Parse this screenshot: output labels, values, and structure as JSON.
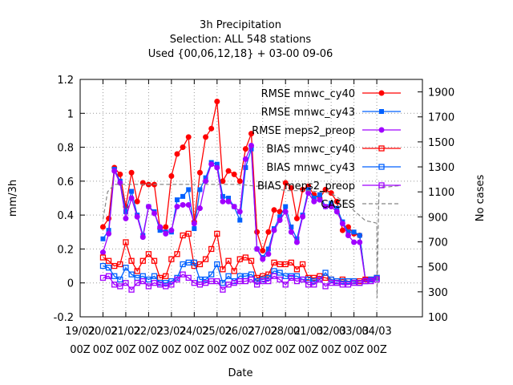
{
  "chart_data": {
    "type": "line",
    "title": [
      "3h Precipitation",
      "Selection: ALL    548 stations",
      "Used {00,06,12,18} + 03-00 09-06"
    ],
    "xlabel": "Date",
    "ylabel": "mm/3h",
    "y2label": "No cases",
    "xlim": [
      0,
      15
    ],
    "ylim": [
      -0.2,
      1.2
    ],
    "y2lim": [
      100,
      2000
    ],
    "x_tick_labels": [
      [
        "19/02",
        "00Z"
      ],
      [
        "20/02",
        "00Z"
      ],
      [
        "21/02",
        "00Z"
      ],
      [
        "22/02",
        "00Z"
      ],
      [
        "23/02",
        "00Z"
      ],
      [
        "24/02",
        "00Z"
      ],
      [
        "25/02",
        "00Z"
      ],
      [
        "26/02",
        "00Z"
      ],
      [
        "27/02",
        "00Z"
      ],
      [
        "28/02",
        "00Z"
      ],
      [
        "01/03",
        "00Z"
      ],
      [
        "02/03",
        "00Z"
      ],
      [
        "03/03",
        "00Z"
      ],
      [
        "04/03",
        "00Z"
      ]
    ],
    "y_ticks": [
      "-0.2",
      "0",
      "0.2",
      "0.4",
      "0.6",
      "0.8",
      "1",
      "1.2"
    ],
    "y2_ticks": [
      "100",
      "300",
      "500",
      "700",
      "900",
      "1100",
      "1300",
      "1500",
      "1700",
      "1900"
    ],
    "grid": true,
    "legend_position": "top-right",
    "series": [
      {
        "name": "RMSE mnwc_cy40",
        "color": "#ff0000",
        "marker": "filled-circle",
        "x": [
          1.0,
          1.25,
          1.5,
          1.75,
          2.0,
          2.25,
          2.5,
          2.75,
          3.0,
          3.25,
          3.5,
          3.75,
          4.0,
          4.25,
          4.5,
          4.75,
          5.0,
          5.25,
          5.5,
          5.75,
          6.0,
          6.25,
          6.5,
          6.75,
          7.0,
          7.25,
          7.5,
          7.75,
          8.0,
          8.25,
          8.5,
          8.75,
          9.0,
          9.25,
          9.5,
          9.75,
          10.0,
          10.25,
          10.5,
          10.75,
          11.0,
          11.25,
          11.5,
          11.75,
          12.0,
          12.25,
          12.5,
          12.75,
          13.0
        ],
        "y": [
          0.33,
          0.38,
          0.68,
          0.64,
          0.45,
          0.65,
          0.48,
          0.59,
          0.58,
          0.58,
          0.32,
          0.33,
          0.63,
          0.76,
          0.8,
          0.86,
          0.36,
          0.65,
          0.86,
          0.91,
          1.07,
          0.6,
          0.66,
          0.64,
          0.6,
          0.79,
          0.88,
          0.3,
          0.19,
          0.3,
          0.43,
          0.42,
          0.59,
          0.56,
          0.38,
          0.55,
          0.57,
          0.52,
          0.5,
          0.55,
          0.53,
          0.48,
          0.31,
          0.33,
          0.29,
          0.28,
          0.02,
          0.02,
          0.03
        ]
      },
      {
        "name": "RMSE mnwc_cy43",
        "color": "#0060ff",
        "marker": "filled-square",
        "x": [
          1.0,
          1.25,
          1.5,
          1.75,
          2.0,
          2.25,
          2.5,
          2.75,
          3.0,
          3.25,
          3.5,
          3.75,
          4.0,
          4.25,
          4.5,
          4.75,
          5.0,
          5.25,
          5.5,
          5.75,
          6.0,
          6.25,
          6.5,
          6.75,
          7.0,
          7.25,
          7.5,
          7.75,
          8.0,
          8.25,
          8.5,
          8.75,
          9.0,
          9.25,
          9.5,
          9.75,
          10.0,
          10.25,
          10.5,
          10.75,
          11.0,
          11.25,
          11.5,
          11.75,
          12.0,
          12.25,
          12.5,
          12.75,
          13.0
        ],
        "y": [
          0.26,
          0.31,
          0.67,
          0.6,
          0.42,
          0.54,
          0.4,
          0.28,
          0.45,
          0.42,
          0.31,
          0.3,
          0.3,
          0.49,
          0.51,
          0.55,
          0.32,
          0.55,
          0.62,
          0.71,
          0.7,
          0.51,
          0.5,
          0.45,
          0.37,
          0.68,
          0.79,
          0.2,
          0.15,
          0.2,
          0.32,
          0.39,
          0.45,
          0.33,
          0.26,
          0.4,
          0.55,
          0.5,
          0.52,
          0.45,
          0.47,
          0.44,
          0.36,
          0.3,
          0.3,
          0.28,
          0.02,
          0.02,
          0.03
        ]
      },
      {
        "name": "RMSE meps2_preop",
        "color": "#a000ff",
        "marker": "filled-circle",
        "x": [
          1.0,
          1.25,
          1.5,
          1.75,
          2.0,
          2.25,
          2.5,
          2.75,
          3.0,
          3.25,
          3.5,
          3.75,
          4.0,
          4.25,
          4.5,
          4.75,
          5.0,
          5.25,
          5.5,
          5.75,
          6.0,
          6.25,
          6.5,
          6.75,
          7.0,
          7.25,
          7.5,
          7.75,
          8.0,
          8.25,
          8.5,
          8.75,
          9.0,
          9.25,
          9.5,
          9.75,
          10.0,
          10.25,
          10.5,
          10.75,
          11.0,
          11.25,
          11.5,
          11.75,
          12.0,
          12.25,
          12.5,
          12.75,
          13.0
        ],
        "y": [
          0.18,
          0.29,
          0.66,
          0.59,
          0.38,
          0.5,
          0.39,
          0.27,
          0.45,
          0.41,
          0.33,
          0.29,
          0.31,
          0.45,
          0.46,
          0.46,
          0.35,
          0.44,
          0.6,
          0.7,
          0.68,
          0.48,
          0.48,
          0.45,
          0.42,
          0.73,
          0.81,
          0.2,
          0.14,
          0.17,
          0.31,
          0.37,
          0.42,
          0.3,
          0.24,
          0.39,
          0.53,
          0.48,
          0.49,
          0.45,
          0.45,
          0.42,
          0.35,
          0.28,
          0.24,
          0.24,
          0.02,
          0.02,
          0.03
        ]
      },
      {
        "name": "BIAS mnwc_cy40",
        "color": "#ff0000",
        "marker": "open-square",
        "x": [
          1.0,
          1.25,
          1.5,
          1.75,
          2.0,
          2.25,
          2.5,
          2.75,
          3.0,
          3.25,
          3.5,
          3.75,
          4.0,
          4.25,
          4.5,
          4.75,
          5.0,
          5.25,
          5.5,
          5.75,
          6.0,
          6.25,
          6.5,
          6.75,
          7.0,
          7.25,
          7.5,
          7.75,
          8.0,
          8.25,
          8.5,
          8.75,
          9.0,
          9.25,
          9.5,
          9.75,
          10.0,
          10.25,
          10.5,
          10.75,
          11.0,
          11.25,
          11.5,
          11.75,
          12.0,
          12.25,
          12.5,
          12.75,
          13.0
        ],
        "y": [
          0.15,
          0.13,
          0.1,
          0.11,
          0.24,
          0.13,
          0.07,
          0.13,
          0.17,
          0.13,
          0.03,
          0.04,
          0.14,
          0.17,
          0.28,
          0.29,
          0.1,
          0.11,
          0.14,
          0.2,
          0.29,
          0.08,
          0.13,
          0.07,
          0.14,
          0.15,
          0.13,
          0.03,
          0.04,
          0.05,
          0.12,
          0.11,
          0.11,
          0.12,
          0.08,
          0.11,
          0.03,
          0.03,
          0.04,
          0.03,
          0.02,
          0.01,
          0.02,
          0.01,
          0.01,
          0.01,
          0.02,
          0.02,
          0.03
        ]
      },
      {
        "name": "BIAS mnwc_cy43",
        "color": "#0060ff",
        "marker": "open-square",
        "x": [
          1.0,
          1.25,
          1.5,
          1.75,
          2.0,
          2.25,
          2.5,
          2.75,
          3.0,
          3.25,
          3.5,
          3.75,
          4.0,
          4.25,
          4.5,
          4.75,
          5.0,
          5.25,
          5.5,
          5.75,
          6.0,
          6.25,
          6.5,
          6.75,
          7.0,
          7.25,
          7.5,
          7.75,
          8.0,
          8.25,
          8.5,
          8.75,
          9.0,
          9.25,
          9.5,
          9.75,
          10.0,
          10.25,
          10.5,
          10.75,
          11.0,
          11.25,
          11.5,
          11.75,
          12.0,
          12.25,
          12.5,
          12.75,
          13.0
        ],
        "y": [
          0.1,
          0.09,
          0.04,
          0.02,
          0.09,
          0.05,
          0.03,
          0.04,
          0.02,
          0.04,
          0.0,
          0.0,
          0.01,
          0.03,
          0.11,
          0.12,
          0.12,
          0.02,
          0.02,
          0.05,
          0.11,
          0.0,
          0.04,
          0.01,
          0.04,
          0.04,
          0.05,
          0.01,
          0.02,
          0.03,
          0.07,
          0.06,
          0.04,
          0.04,
          0.04,
          0.02,
          0.02,
          0.01,
          0.02,
          0.06,
          0.02,
          0.01,
          0.01,
          0.01,
          0.01,
          0.0,
          0.01,
          0.02,
          0.03
        ]
      },
      {
        "name": "BIAS meps2_preop",
        "color": "#a000ff",
        "marker": "open-square",
        "x": [
          1.0,
          1.25,
          1.5,
          1.75,
          2.0,
          2.25,
          2.5,
          2.75,
          3.0,
          3.25,
          3.5,
          3.75,
          4.0,
          4.25,
          4.5,
          4.75,
          5.0,
          5.25,
          5.5,
          5.75,
          6.0,
          6.25,
          6.5,
          6.75,
          7.0,
          7.25,
          7.5,
          7.75,
          8.0,
          8.25,
          8.5,
          8.75,
          9.0,
          9.25,
          9.5,
          9.75,
          10.0,
          10.25,
          10.5,
          10.75,
          11.0,
          11.25,
          11.5,
          11.75,
          12.0,
          12.25,
          12.5,
          12.75,
          13.0
        ],
        "y": [
          0.03,
          0.04,
          -0.01,
          -0.02,
          0.0,
          -0.04,
          0.0,
          0.01,
          -0.02,
          0.0,
          -0.01,
          -0.02,
          -0.01,
          0.02,
          0.05,
          0.03,
          0.0,
          -0.01,
          0.0,
          0.01,
          0.01,
          -0.04,
          -0.01,
          0.0,
          0.01,
          0.01,
          0.02,
          -0.01,
          0.01,
          0.01,
          0.04,
          0.02,
          -0.01,
          0.03,
          0.01,
          0.02,
          -0.01,
          -0.01,
          0.02,
          -0.02,
          0.0,
          0.0,
          -0.01,
          -0.01,
          0.0,
          0.0,
          0.01,
          0.01,
          0.02
        ]
      },
      {
        "name": "CASES",
        "color": "#888888",
        "marker": "none",
        "dashed": true,
        "axis": "right",
        "x": [
          1.0,
          1.2,
          1.5,
          7.0,
          7.75,
          8.0,
          9.0,
          10.0,
          11.0,
          11.75,
          12.0,
          12.5,
          13.0,
          13.01,
          13.05,
          13.1,
          13.5,
          14.0
        ],
        "y": [
          880,
          1100,
          1160,
          1160,
          1145,
          1150,
          1110,
          1110,
          1090,
          1000,
          950,
          870,
          850,
          250,
          700,
          1140,
          1140,
          1150
        ]
      }
    ]
  }
}
